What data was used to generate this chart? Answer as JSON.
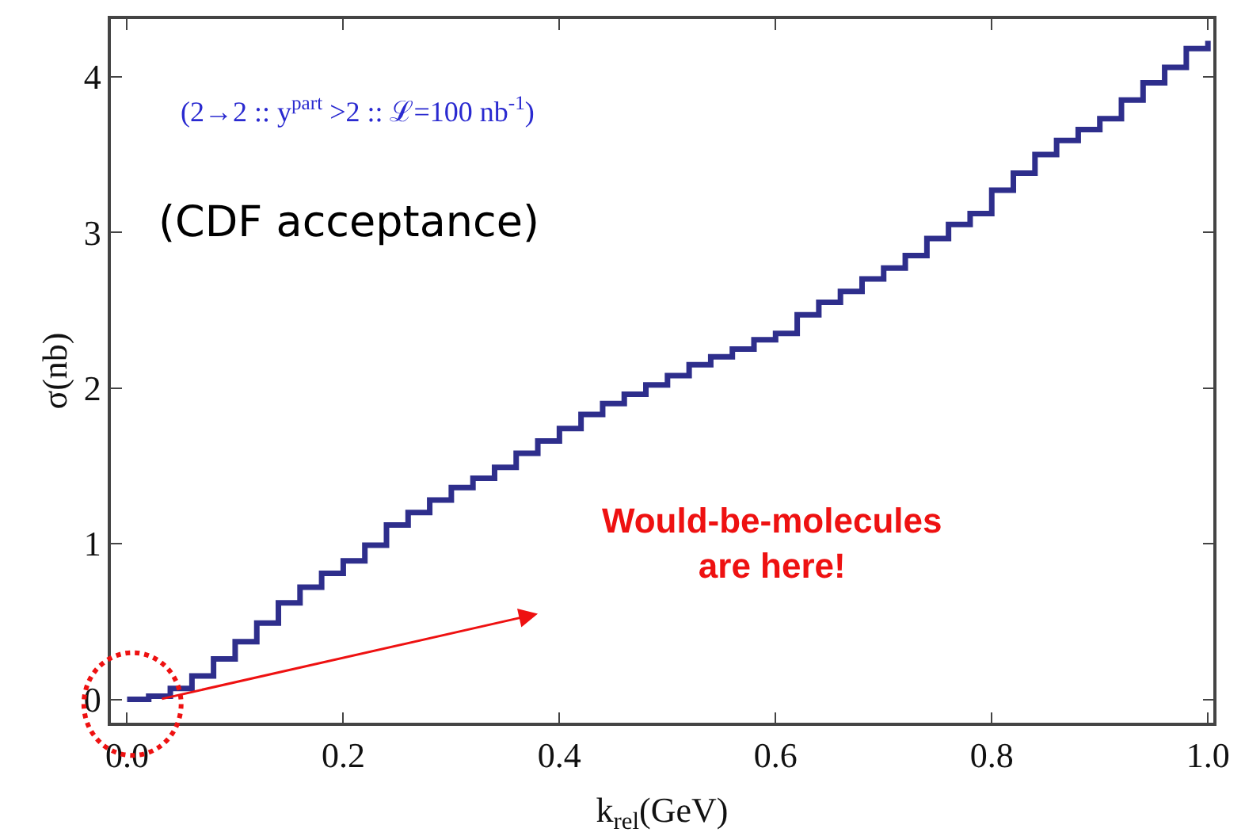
{
  "chart_data": {
    "type": "step",
    "xlabel": "k$_{rel}$(GeV)",
    "ylabel": "σ(nb)",
    "annotations": [
      "(2→2 :: y$^{part}$ >2 :: ℒ=100 nb$^{-1}$)",
      "(CDF acceptance)",
      "Would-be-molecules\nare here!"
    ],
    "x": [
      0.0,
      0.02,
      0.04,
      0.06,
      0.08,
      0.1,
      0.12,
      0.14,
      0.16,
      0.18,
      0.2,
      0.22,
      0.24,
      0.26,
      0.28,
      0.3,
      0.32,
      0.34,
      0.36,
      0.38,
      0.4,
      0.42,
      0.44,
      0.46,
      0.48,
      0.5,
      0.52,
      0.54,
      0.56,
      0.58,
      0.6,
      0.62,
      0.64,
      0.66,
      0.68,
      0.7,
      0.72,
      0.74,
      0.76,
      0.78,
      0.8,
      0.82,
      0.84,
      0.86,
      0.88,
      0.9,
      0.92,
      0.94,
      0.96,
      0.98,
      1.0
    ],
    "series": [
      {
        "color": "#2e2e8c",
        "values": [
          0.0,
          0.02,
          0.07,
          0.15,
          0.26,
          0.37,
          0.49,
          0.62,
          0.72,
          0.81,
          0.89,
          0.99,
          1.12,
          1.2,
          1.28,
          1.36,
          1.42,
          1.49,
          1.58,
          1.66,
          1.74,
          1.83,
          1.9,
          1.96,
          2.02,
          2.08,
          2.15,
          2.2,
          2.25,
          2.31,
          2.35,
          2.47,
          2.55,
          2.62,
          2.7,
          2.77,
          2.85,
          2.96,
          3.05,
          3.12,
          3.27,
          3.38,
          3.5,
          3.59,
          3.66,
          3.73,
          3.85,
          3.96,
          4.06,
          4.18,
          4.23
        ]
      }
    ],
    "xlim": [
      -0.015,
      1.005
    ],
    "ylim": [
      -0.15,
      4.37
    ],
    "xticks": [
      {
        "value": 0,
        "label": "0.0"
      },
      0.2,
      0.4,
      0.6,
      0.8,
      {
        "value": 1,
        "label": "1.0"
      }
    ],
    "yticks": [
      0,
      1,
      2,
      3,
      4
    ],
    "legend": false,
    "marker": "none",
    "line_style": "solid"
  }
}
